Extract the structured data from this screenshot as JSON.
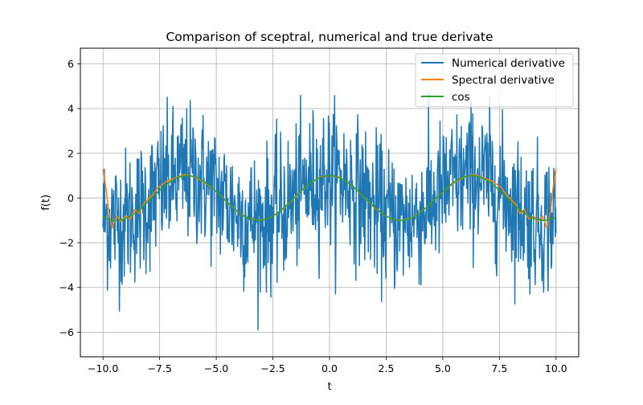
{
  "chart_data": {
    "type": "line",
    "title": "Comparison of sceptral, numerical and true derivate",
    "xlabel": "t",
    "ylabel": "f(t)",
    "xlim": [
      -11.0,
      11.0
    ],
    "ylim": [
      -7.1,
      6.7
    ],
    "x_ticks": [
      -10.0,
      -7.5,
      -5.0,
      -2.5,
      0.0,
      2.5,
      5.0,
      7.5,
      10.0
    ],
    "x_tick_labels": [
      "−10.0",
      "−7.5",
      "−5.0",
      "−2.5",
      "0.0",
      "2.5",
      "5.0",
      "7.5",
      "10.0"
    ],
    "y_ticks": [
      -6,
      -4,
      -2,
      0,
      2,
      4,
      6
    ],
    "y_tick_labels": [
      "−6",
      "−4",
      "−2",
      "0",
      "2",
      "4",
      "6"
    ],
    "grid": true,
    "legend_position": "top-right",
    "x_range": [
      -10.0,
      10.0
    ],
    "series": [
      {
        "name": "Numerical derivative",
        "color": "#1f77b4",
        "samples": 1024,
        "description_values": "noisy signal approximately cos(t) plus noise with standard deviation about 1.6; observed range -5.9 to 5.6",
        "envelope": {
          "min": -5.9,
          "max": 5.6
        }
      },
      {
        "name": "Spectral derivative",
        "color": "#ff7f0e",
        "x": [
          -10.0,
          -9.85,
          -9.75,
          -9.6,
          -9.4,
          -9.2,
          -9.0,
          -8.8,
          -8.6,
          -8.4,
          -8.2,
          -8.0,
          -7.8,
          -7.6,
          -7.2,
          -6.8,
          -6.4,
          -6.2,
          -6.0,
          -5.6,
          -5.2,
          -4.8,
          -4.4,
          -4.0,
          -3.6,
          -3.2,
          -2.8,
          -2.4,
          -2.0,
          -1.6,
          -1.2,
          -0.8,
          -0.4,
          0.0,
          0.4,
          0.8,
          1.2,
          1.6,
          2.0,
          2.4,
          2.8,
          3.2,
          3.6,
          4.0,
          4.4,
          4.8,
          5.2,
          5.6,
          6.0,
          6.2,
          6.4,
          6.8,
          7.2,
          7.6,
          7.8,
          8.0,
          8.2,
          8.4,
          8.6,
          8.8,
          9.0,
          9.2,
          9.4,
          9.6,
          9.75,
          9.85,
          10.0
        ],
        "y": [
          1.3,
          0.3,
          -0.6,
          -1.35,
          -0.8,
          -1.05,
          -0.8,
          -0.95,
          -0.5,
          -0.7,
          -0.25,
          -0.05,
          0.15,
          0.45,
          0.75,
          0.9,
          1.05,
          1.0,
          0.95,
          0.75,
          0.45,
          0.1,
          -0.3,
          -0.65,
          -0.9,
          -1.0,
          -0.95,
          -0.75,
          -0.45,
          -0.05,
          0.35,
          0.7,
          0.95,
          1.0,
          0.95,
          0.7,
          0.35,
          -0.05,
          -0.45,
          -0.75,
          -0.95,
          -1.0,
          -0.9,
          -0.65,
          -0.3,
          0.1,
          0.45,
          0.75,
          0.95,
          1.0,
          1.05,
          0.9,
          0.75,
          0.45,
          0.15,
          -0.05,
          -0.25,
          -0.7,
          -0.5,
          -0.95,
          -0.8,
          -1.05,
          -0.8,
          -1.35,
          -0.6,
          0.3,
          1.3
        ]
      },
      {
        "name": "cos",
        "color": "#2ca02c",
        "function": "cos(t)",
        "x_range": [
          -10.0,
          10.0
        ]
      }
    ]
  }
}
